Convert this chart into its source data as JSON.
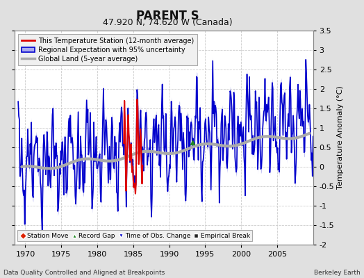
{
  "title": "PARENT S",
  "subtitle": "47.920 N, 74.620 W (Canada)",
  "ylabel": "Temperature Anomaly (°C)",
  "xlabel_left": "Data Quality Controlled and Aligned at Breakpoints",
  "xlabel_right": "Berkeley Earth",
  "ylim": [
    -2.0,
    3.5
  ],
  "xlim": [
    1968.5,
    2010.0
  ],
  "xticks": [
    1970,
    1975,
    1980,
    1985,
    1990,
    1995,
    2000,
    2005
  ],
  "yticks": [
    -2,
    -1.5,
    -1,
    -0.5,
    0,
    0.5,
    1,
    1.5,
    2,
    2.5,
    3,
    3.5
  ],
  "bg_color": "#e0e0e0",
  "plot_bg_color": "#ffffff",
  "regional_color": "#0000cc",
  "regional_fill_color": "#aaaaee",
  "station_color": "#dd0000",
  "global_color": "#aaaaaa",
  "global_lw": 3.0,
  "regional_lw": 1.2,
  "station_lw": 1.5,
  "station_x_start": 1983.7,
  "station_x_end": 1986.3,
  "record_gap_x": 1993.2,
  "record_gap_y": 0.62,
  "title_fontsize": 12,
  "subtitle_fontsize": 9,
  "tick_fontsize": 8,
  "ylabel_fontsize": 8
}
